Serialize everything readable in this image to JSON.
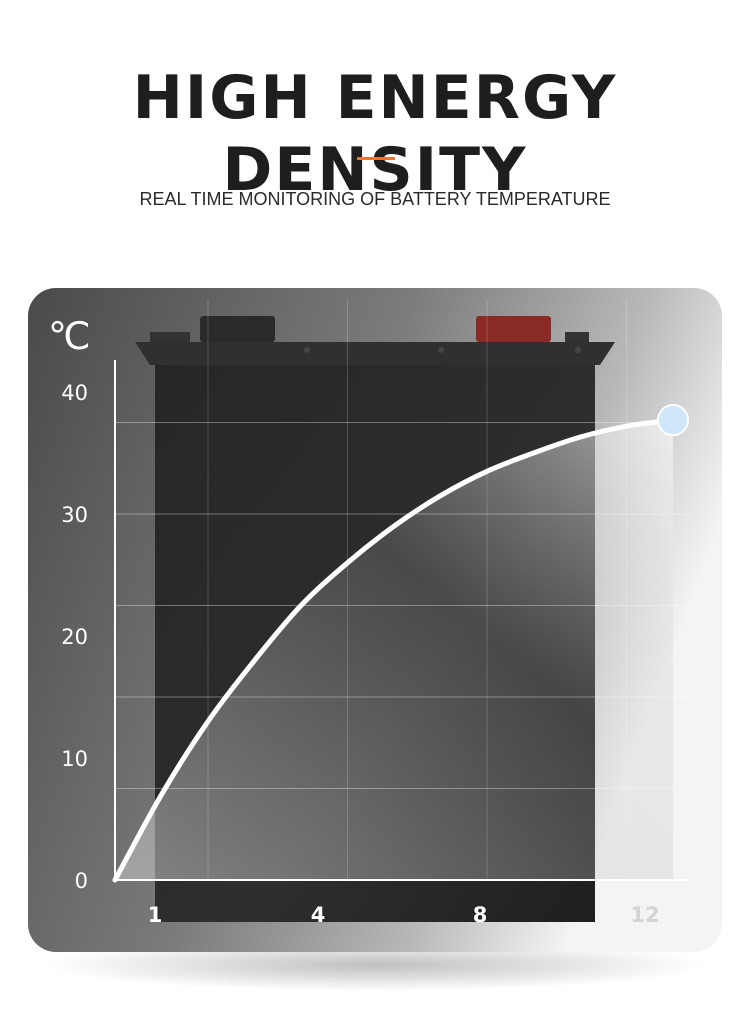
{
  "header": {
    "title": "HIGH ENERGY DENSITY",
    "subtitle": "REAL TIME MONITORING OF BATTERY TEMPERATURE",
    "accent_color": "#ee7433"
  },
  "chart_data": {
    "type": "line",
    "title": "",
    "xlabel": "",
    "ylabel": "℃",
    "xlim": [
      0,
      12
    ],
    "ylim": [
      0,
      40
    ],
    "x_ticks": [
      {
        "value": 1,
        "label": "1"
      },
      {
        "value": 4,
        "label": "4"
      },
      {
        "value": 8,
        "label": "8"
      },
      {
        "value": 12,
        "label": "12"
      }
    ],
    "y_ticks": [
      {
        "value": 0,
        "label": "0"
      },
      {
        "value": 10,
        "label": "10"
      },
      {
        "value": 20,
        "label": "20"
      },
      {
        "value": 30,
        "label": "30"
      },
      {
        "value": 40,
        "label": "40"
      }
    ],
    "grid": true,
    "series": [
      {
        "values": [
          {
            "x": 0,
            "y": 0
          },
          {
            "x": 1,
            "y": 7
          },
          {
            "x": 2,
            "y": 13
          },
          {
            "x": 3,
            "y": 18
          },
          {
            "x": 4,
            "y": 22.5
          },
          {
            "x": 5,
            "y": 26
          },
          {
            "x": 6,
            "y": 29
          },
          {
            "x": 7,
            "y": 31.5
          },
          {
            "x": 8,
            "y": 33.5
          },
          {
            "x": 9,
            "y": 35
          },
          {
            "x": 10,
            "y": 36.3
          },
          {
            "x": 11,
            "y": 37.2
          },
          {
            "x": 12,
            "y": 37.7
          }
        ]
      }
    ],
    "colors": {
      "curve": "#ffffff",
      "end_marker": "#cfe7f8",
      "grid": "#ffffff",
      "battery": "#2b2b2b",
      "positive_terminal": "#8a2a24"
    }
  }
}
